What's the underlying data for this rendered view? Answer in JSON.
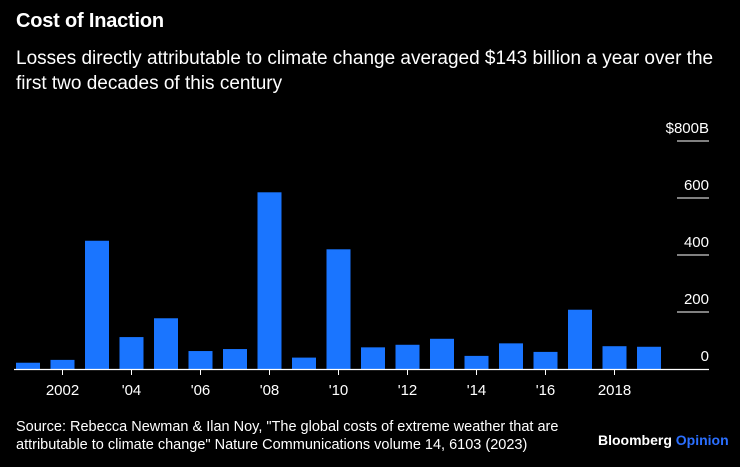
{
  "title": "Cost of Inaction",
  "subtitle": "Losses directly attributable to climate change averaged $143 billion a year over the first two decades of this century",
  "source": "Source: Rebecca Newman & Ilan Noy, \"The global costs of extreme weather that are attributable to climate change\" Nature Communications volume 14, 6103 (2023)",
  "brand": {
    "name": "Bloomberg",
    "product": "Opinion"
  },
  "colors": {
    "bar": "#1a75ff",
    "background": "#000000",
    "text": "#ffffff",
    "grid": "#ffffff",
    "brand_accent": "#2b6fff"
  },
  "chart_data": {
    "type": "bar",
    "title": "Cost of Inaction",
    "xlabel": "",
    "ylabel": "",
    "categories": [
      "2001",
      "2002",
      "2003",
      "2004",
      "2005",
      "2006",
      "2007",
      "2008",
      "2009",
      "2010",
      "2011",
      "2012",
      "2013",
      "2014",
      "2015",
      "2016",
      "2017",
      "2018",
      "2019"
    ],
    "values": [
      22,
      32,
      450,
      112,
      178,
      63,
      70,
      620,
      40,
      420,
      76,
      85,
      106,
      46,
      90,
      60,
      208,
      80,
      78
    ],
    "ylim": [
      0,
      800
    ],
    "y_ticks": [
      0,
      200,
      400,
      600,
      800
    ],
    "y_tick_labels": [
      "0",
      "200",
      "400",
      "600",
      "$800B"
    ],
    "x_tick_labels": [
      {
        "index": 1,
        "label": "2002"
      },
      {
        "index": 3,
        "label": "'04"
      },
      {
        "index": 5,
        "label": "'06"
      },
      {
        "index": 7,
        "label": "'08"
      },
      {
        "index": 9,
        "label": "'10"
      },
      {
        "index": 11,
        "label": "'12"
      },
      {
        "index": 13,
        "label": "'14"
      },
      {
        "index": 15,
        "label": "'16"
      },
      {
        "index": 17,
        "label": "2018"
      }
    ],
    "grid": true
  }
}
